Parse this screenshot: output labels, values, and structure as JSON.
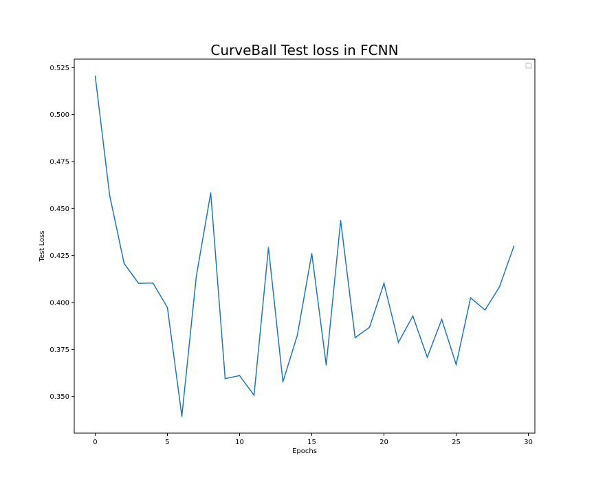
{
  "chart_data": {
    "type": "line",
    "title": "CurveBall Test loss in FCNN",
    "xlabel": "Epochs",
    "ylabel": "Test Loss",
    "xlim": [
      -1.45,
      30.45
    ],
    "ylim": [
      0.3305,
      0.5295
    ],
    "x_ticks": [
      0,
      5,
      10,
      15,
      20,
      25,
      30
    ],
    "y_ticks": [
      0.35,
      0.375,
      0.4,
      0.425,
      0.45,
      0.475,
      0.5,
      0.525
    ],
    "y_tick_labels": [
      "0.350",
      "0.375",
      "0.400",
      "0.425",
      "0.450",
      "0.475",
      "0.500",
      "0.525"
    ],
    "grid": false,
    "legend": "top-right (empty)",
    "series": [
      {
        "color": "#1f77b4",
        "x": [
          0,
          1,
          2,
          3,
          4,
          5,
          6,
          7,
          8,
          9,
          10,
          11,
          12,
          13,
          14,
          15,
          16,
          17,
          18,
          19,
          20,
          21,
          22,
          23,
          24,
          25,
          26,
          27,
          28,
          29
        ],
        "values": [
          0.5205,
          0.457,
          0.4208,
          0.4102,
          0.4104,
          0.3973,
          0.3395,
          0.4138,
          0.4584,
          0.3595,
          0.3611,
          0.3507,
          0.4292,
          0.3578,
          0.3826,
          0.426,
          0.3667,
          0.4436,
          0.3813,
          0.3868,
          0.4102,
          0.3788,
          0.3928,
          0.3709,
          0.391,
          0.367,
          0.4025,
          0.396,
          0.4083,
          0.43
        ]
      }
    ]
  }
}
